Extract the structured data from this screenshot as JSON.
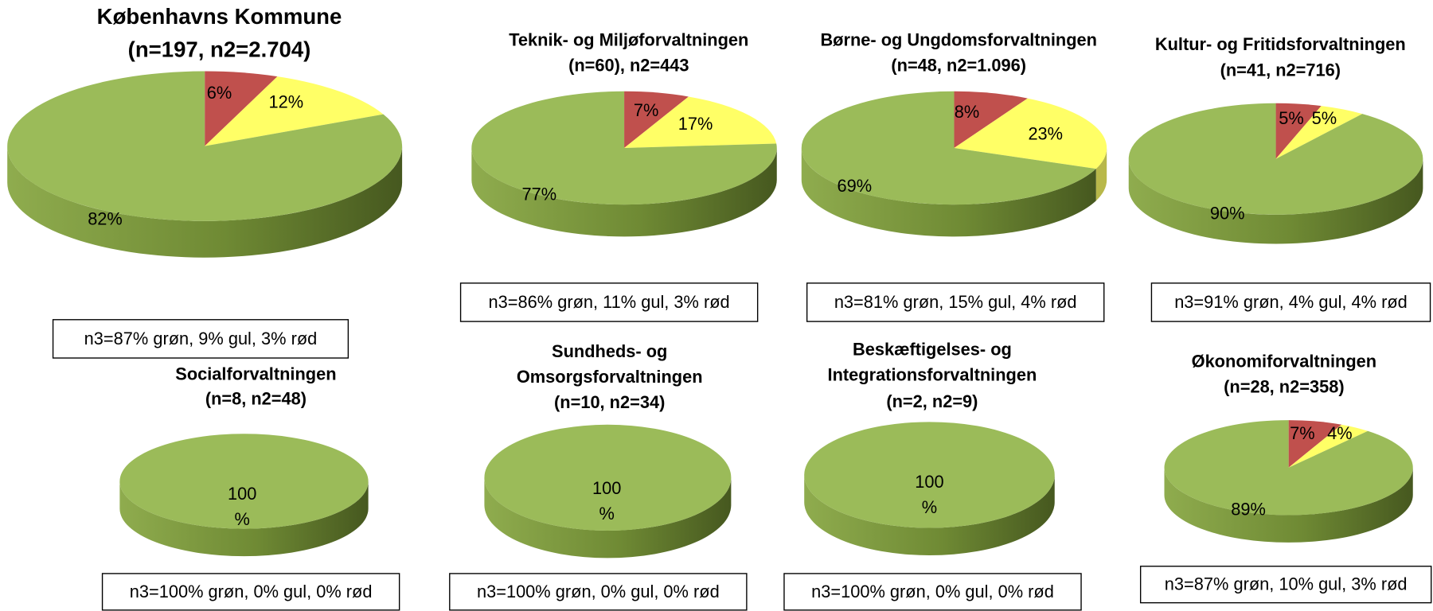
{
  "chart_data": [
    {
      "type": "pie3d",
      "title": [
        "Københavns Kommune",
        "(n=197, n2=2.704)"
      ],
      "values": [
        6,
        12,
        82
      ],
      "value_labels": [
        "6%",
        "12%",
        "82%"
      ],
      "colors": [
        "#c0504d",
        "#ffff66",
        "#9bbb59"
      ],
      "note": "n3=87% grøn, 9% gul, 3% rød"
    },
    {
      "type": "pie3d",
      "title": [
        "Teknik- og Miljøforvaltningen",
        "(n=60), n2=443"
      ],
      "values": [
        7,
        17,
        77
      ],
      "value_labels": [
        "7%",
        "17%",
        "77%"
      ],
      "colors": [
        "#c0504d",
        "#ffff66",
        "#9bbb59"
      ],
      "note": "n3=86% grøn, 11% gul, 3% rød"
    },
    {
      "type": "pie3d",
      "title": [
        "Børne- og Ungdomsforvaltningen",
        "(n=48, n2=1.096)"
      ],
      "values": [
        8,
        23,
        69
      ],
      "value_labels": [
        "8%",
        "23%",
        "69%"
      ],
      "colors": [
        "#c0504d",
        "#ffff66",
        "#9bbb59"
      ],
      "note": "n3=81% grøn, 15% gul, 4% rød"
    },
    {
      "type": "pie3d",
      "title": [
        "Kultur- og Fritidsforvaltningen",
        "(n=41, n2=716)"
      ],
      "values": [
        5,
        5,
        90
      ],
      "value_labels": [
        "5%",
        "5%",
        "90%"
      ],
      "colors": [
        "#c0504d",
        "#ffff66",
        "#9bbb59"
      ],
      "note": "n3=91% grøn, 4% gul, 4% rød"
    },
    {
      "type": "pie3d",
      "title": [
        "Socialforvaltningen",
        "(n=8, n2=48)"
      ],
      "values": [
        100
      ],
      "value_labels": [
        "100 %"
      ],
      "colors": [
        "#9bbb59"
      ],
      "note": "n3=100% grøn, 0% gul, 0% rød"
    },
    {
      "type": "pie3d",
      "title": [
        "Sundheds- og",
        "Omsorgsforvaltningen",
        "(n=10, n2=34)"
      ],
      "values": [
        100
      ],
      "value_labels": [
        "100 %"
      ],
      "colors": [
        "#9bbb59"
      ],
      "note": "n3=100% grøn, 0% gul, 0% rød"
    },
    {
      "type": "pie3d",
      "title": [
        "Beskæftigelses- og",
        "Integrationsforvaltningen",
        "(n=2, n2=9)"
      ],
      "values": [
        100
      ],
      "value_labels": [
        "100 %"
      ],
      "colors": [
        "#9bbb59"
      ],
      "note": "n3=100% grøn, 0% gul, 0% rød"
    },
    {
      "type": "pie3d",
      "title": [
        "Økonomiforvaltningen",
        "(n=28, n2=358)"
      ],
      "values": [
        7,
        4,
        89
      ],
      "value_labels": [
        "7%",
        "4%",
        "89%"
      ],
      "colors": [
        "#c0504d",
        "#ffff66",
        "#9bbb59"
      ],
      "note": "n3=87% grøn, 10% gul, 3% rød"
    }
  ]
}
